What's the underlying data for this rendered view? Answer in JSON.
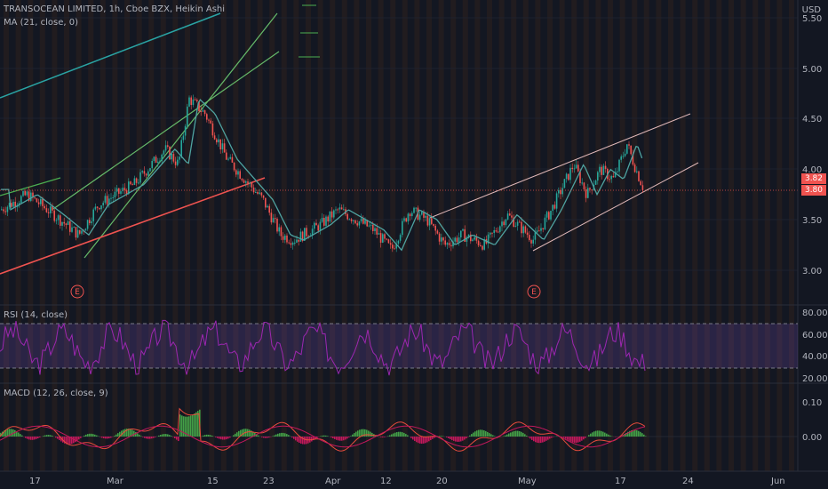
{
  "header": {
    "symbol_line": "TRANSOCEAN LIMITED, 1h, Cboe BZX, Heikin Ashi",
    "ma_line": "MA (21, close, 0)",
    "currency": "USD"
  },
  "rsi_panel": {
    "label": "RSI (14, close)",
    "levels": [
      "80.00",
      "60.00",
      "40.00",
      "20.00"
    ]
  },
  "macd_panel": {
    "label": "MACD (12, 26, close, 9)",
    "levels": [
      "0.10",
      "0.00"
    ]
  },
  "price_axis": {
    "ticks": [
      "5.50",
      "5.00",
      "4.50",
      "4.00",
      "3.50",
      "3.00"
    ]
  },
  "price_tags": {
    "ma_value": "3.82",
    "last_price": "3.80"
  },
  "time_axis": {
    "ticks": [
      "17",
      "Mar",
      "15",
      "23",
      "Apr",
      "12",
      "20",
      "May",
      "17",
      "24",
      "Jun"
    ]
  },
  "earnings_markers": [
    "E",
    "E"
  ],
  "colors": {
    "background": "#131722",
    "up": "#26a69a",
    "down": "#ef5350",
    "ma_line": "#4fa3a0",
    "rsi_line": "#9c27b0",
    "rsi_band": "#7e57c2",
    "macd_line": "#e74c3c",
    "signal_line": "#c2185b"
  },
  "chart_data": [
    {
      "type": "candlestick",
      "title": "TRANSOCEAN LIMITED, 1h, Cboe BZX, Heikin Ashi",
      "ylabel": "USD",
      "ylim": [
        2.9,
        5.6
      ],
      "x_ticks": [
        "17",
        "Mar",
        "15",
        "23",
        "Apr",
        "12",
        "20",
        "May",
        "17",
        "24",
        "Jun"
      ],
      "series": [
        {
          "name": "MA (21, close, 0)",
          "approx_close": [
            3.6,
            3.65,
            3.55,
            3.7,
            3.85,
            4.1,
            4.35,
            4.6,
            4.45,
            4.0,
            3.6,
            3.35,
            3.4,
            3.55,
            3.45,
            3.3,
            3.4,
            3.45,
            3.3,
            3.35,
            3.3,
            3.6,
            3.95,
            4.05,
            4.2,
            3.8
          ]
        }
      ],
      "last_price": 3.8,
      "ma_value": 3.82
    },
    {
      "type": "line",
      "title": "RSI (14, close)",
      "ylim": [
        20,
        80
      ],
      "levels": [
        70,
        30
      ]
    },
    {
      "type": "bar",
      "title": "MACD (12, 26, close, 9)",
      "ylim": [
        -0.05,
        0.12
      ]
    }
  ]
}
